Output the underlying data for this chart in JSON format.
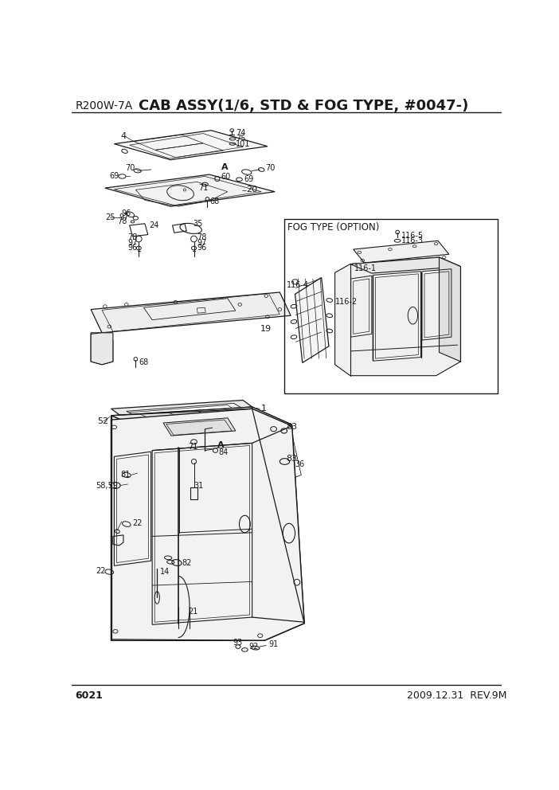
{
  "title_left": "R200W-7A",
  "title_right": "CAB ASSY(1/6, STD & FOG TYPE, #0047-)",
  "page_num": "6021",
  "date_rev": "2009.12.31  REV.9M",
  "fog_type_label": "FOG TYPE (OPTION)",
  "bg": "#ffffff",
  "lc": "#1a1a1a",
  "tc": "#1a1a1a",
  "title_fs": 13,
  "fs": 8,
  "sfs": 7,
  "footer_fs": 9
}
